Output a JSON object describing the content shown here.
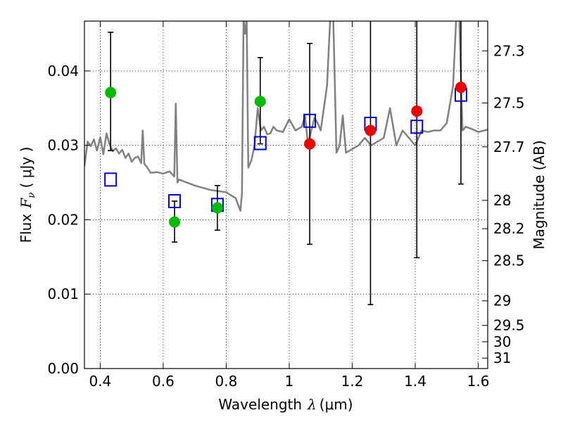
{
  "chart_data": {
    "type": "scatter",
    "xlabel_text": "Wavelength",
    "xlabel_symbol": "λ",
    "xlabel_unit": "(μm)",
    "ylabel_text": "Flux",
    "ylabel_symbol": "F",
    "ylabel_sub": "ν",
    "ylabel_unit": "( μJy )",
    "y2label": "Magnitude (AB)",
    "xlim": [
      0.35,
      1.63
    ],
    "ylim": [
      0.0,
      0.0467
    ],
    "grid": true,
    "x_ticks": [
      0.4,
      0.6,
      0.8,
      1.0,
      1.2,
      1.4,
      1.6
    ],
    "x_tick_labels": [
      "0.4",
      "0.6",
      "0.8",
      "1",
      "1.2",
      "1.4",
      "1.6"
    ],
    "y_ticks": [
      0.0,
      0.01,
      0.02,
      0.03,
      0.04
    ],
    "y_tick_labels": [
      "0.00",
      "0.01",
      "0.02",
      "0.03",
      "0.04"
    ],
    "y2_ticks": [
      {
        "label": "27.3",
        "flux": 0.0427
      },
      {
        "label": "27.5",
        "flux": 0.0357
      },
      {
        "label": "27.7",
        "flux": 0.0298
      },
      {
        "label": "28",
        "flux": 0.0226
      },
      {
        "label": "28.2",
        "flux": 0.0188
      },
      {
        "label": "28.5",
        "flux": 0.0145
      },
      {
        "label": "29",
        "flux": 0.0091
      },
      {
        "label": "29.5",
        "flux": 0.0058
      },
      {
        "label": "30",
        "flux": 0.0036
      },
      {
        "label": "31",
        "flux": 0.0014
      }
    ],
    "series": [
      {
        "kind": "model_sed_line",
        "color": "#808080",
        "x": [
          0.35,
          0.36,
          0.37,
          0.38,
          0.39,
          0.4,
          0.41,
          0.42,
          0.43,
          0.44,
          0.45,
          0.46,
          0.47,
          0.48,
          0.49,
          0.5,
          0.51,
          0.52,
          0.53,
          0.535,
          0.54,
          0.55,
          0.56,
          0.58,
          0.6,
          0.62,
          0.635,
          0.64,
          0.645,
          0.65,
          0.7,
          0.75,
          0.8,
          0.83,
          0.845,
          0.85,
          0.855,
          0.86,
          0.865,
          0.87,
          0.88,
          0.89,
          0.9,
          0.91,
          0.92,
          0.93,
          0.94,
          0.95,
          0.96,
          0.98,
          1.0,
          1.02,
          1.04,
          1.05,
          1.06,
          1.07,
          1.08,
          1.09,
          1.1,
          1.12,
          1.13,
          1.14,
          1.15,
          1.16,
          1.17,
          1.18,
          1.2,
          1.22,
          1.24,
          1.26,
          1.28,
          1.3,
          1.32,
          1.34,
          1.36,
          1.38,
          1.4,
          1.42,
          1.44,
          1.46,
          1.48,
          1.5,
          1.52,
          1.53,
          1.54,
          1.55,
          1.56,
          1.58,
          1.6,
          1.63
        ],
        "y": [
          0.0272,
          0.0305,
          0.0299,
          0.0308,
          0.0293,
          0.0311,
          0.0288,
          0.0316,
          0.0301,
          0.0292,
          0.0296,
          0.0289,
          0.0294,
          0.0283,
          0.0289,
          0.0278,
          0.0283,
          0.0285,
          0.0276,
          0.032,
          0.0275,
          0.027,
          0.0263,
          0.0264,
          0.0262,
          0.0265,
          0.0258,
          0.0356,
          0.025,
          0.0254,
          0.0246,
          0.024,
          0.0237,
          0.0229,
          0.0212,
          0.0235,
          0.047,
          0.045,
          0.047,
          0.027,
          0.028,
          0.03,
          0.035,
          0.032,
          0.0325,
          0.0315,
          0.0316,
          0.0325,
          0.032,
          0.0318,
          0.0335,
          0.032,
          0.0325,
          0.034,
          0.03,
          0.032,
          0.0337,
          0.033,
          0.032,
          0.038,
          0.047,
          0.047,
          0.029,
          0.03,
          0.034,
          0.029,
          0.0295,
          0.03,
          0.031,
          0.03,
          0.0305,
          0.031,
          0.035,
          0.03,
          0.032,
          0.031,
          0.03,
          0.032,
          0.0318,
          0.032,
          0.032,
          0.033,
          0.038,
          0.047,
          0.047,
          0.032,
          0.0325,
          0.0322,
          0.0318,
          0.0321
        ]
      },
      {
        "kind": "model_photometry",
        "marker": "open-square",
        "color": "#0000cc",
        "points": [
          {
            "x": 0.433,
            "y": 0.0254
          },
          {
            "x": 0.636,
            "y": 0.0225
          },
          {
            "x": 0.772,
            "y": 0.022
          },
          {
            "x": 0.908,
            "y": 0.0303
          },
          {
            "x": 1.065,
            "y": 0.0333
          },
          {
            "x": 1.258,
            "y": 0.0329
          },
          {
            "x": 1.405,
            "y": 0.0325
          },
          {
            "x": 1.545,
            "y": 0.0368
          }
        ]
      },
      {
        "kind": "observed_detections",
        "marker": "filled-circle",
        "color": "#00bb00",
        "points": [
          {
            "x": 0.433,
            "y": 0.0371,
            "ylo": 0.0293,
            "yhi": 0.0452
          },
          {
            "x": 0.636,
            "y": 0.0197,
            "ylo": 0.017,
            "yhi": 0.0225
          },
          {
            "x": 0.772,
            "y": 0.0216,
            "ylo": 0.0186,
            "yhi": 0.0246
          },
          {
            "x": 0.908,
            "y": 0.0359,
            "ylo": 0.0302,
            "yhi": 0.0418
          }
        ]
      },
      {
        "kind": "observed_other",
        "marker": "filled-circle",
        "color": "#ee0000",
        "points": [
          {
            "x": 1.065,
            "y": 0.0302,
            "ylo": 0.0167,
            "yhi": 0.0437
          },
          {
            "x": 1.258,
            "y": 0.032,
            "ylo": 0.0086,
            "yhi": 0.047
          },
          {
            "x": 1.405,
            "y": 0.0346,
            "ylo": 0.0149,
            "yhi": 0.047
          },
          {
            "x": 1.545,
            "y": 0.0378,
            "ylo": 0.0248,
            "yhi": 0.047
          }
        ]
      }
    ]
  }
}
